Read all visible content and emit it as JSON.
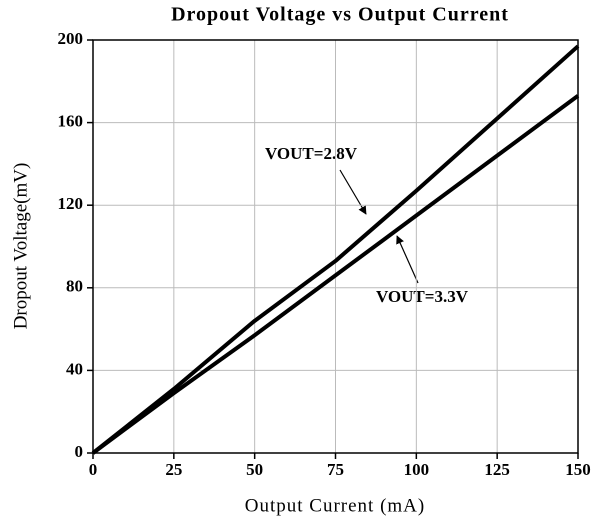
{
  "chart_data": {
    "type": "line",
    "title": "Dropout Voltage vs Output Current",
    "xlabel": "Output Current (mA)",
    "ylabel": "Dropout Voltage(mV)",
    "x": [
      0,
      25,
      50,
      75,
      100,
      125,
      150
    ],
    "series": [
      {
        "name": "VOUT=2.8V",
        "color": "#000000",
        "values": [
          0,
          31,
          64,
          93,
          127,
          162,
          197
        ]
      },
      {
        "name": "VOUT=3.3V",
        "color": "#000000",
        "values": [
          0,
          29,
          57,
          86,
          115,
          144,
          173
        ]
      }
    ],
    "xlim": [
      0,
      150
    ],
    "xticks": [
      0,
      25,
      50,
      75,
      100,
      125,
      150
    ],
    "ylim": [
      0,
      200
    ],
    "yticks": [
      0,
      40,
      80,
      120,
      160,
      200
    ],
    "grid": true
  }
}
